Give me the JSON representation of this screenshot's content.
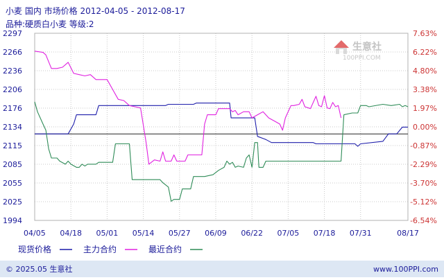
{
  "header": {
    "title": "小麦  国内  市场价格  2012-04-05 - 2012-08-17",
    "subtitle": "品种:硬质白小麦  等级:2"
  },
  "watermark": {
    "brand": "生意社",
    "url": "100PPI.COM"
  },
  "footer": {
    "copyright": "© 2025.05 生意社",
    "website": "www.100PPI.com"
  },
  "colors": {
    "text": "#1a1a99",
    "right_axis_text": "#cc3333",
    "grid": "#c8c8c8",
    "baseline": "#222222",
    "frame": "#b0b0b0",
    "footer_bg": "#dde7f4",
    "spot": "#1c1caa",
    "main_contract": "#e020e0",
    "recent_contract": "#2e8b57"
  },
  "chart_data": {
    "type": "line",
    "title": "小麦  国内  市场价格  2012-04-05 - 2012-08-17",
    "subtitle": "品种:硬质白小麦  等级:2",
    "x_tick_labels": [
      "04/05",
      "04/18",
      "05/01",
      "05/14",
      "05/27",
      "06/09",
      "06/22",
      "07/05",
      "07/18",
      "07/31",
      "08/17"
    ],
    "x_tick_positions": [
      0,
      13,
      26,
      39,
      52,
      65,
      78,
      91,
      104,
      117,
      134
    ],
    "x_range": [
      0,
      134
    ],
    "y_left_ticks": [
      "2297",
      "2266",
      "2236",
      "2206",
      "2176",
      "2134",
      "2115",
      "2085",
      "2055",
      "2025",
      "1994"
    ],
    "y_right_ticks": [
      "7.63%",
      "6.22%",
      "4.80%",
      "3.38%",
      "1.97%",
      "0.00%",
      "-0.87%",
      "-2.29%",
      "-3.70%",
      "-5.12%",
      "-6.54%"
    ],
    "y_range": [
      1994,
      2297
    ],
    "baseline": 2134,
    "grid": true,
    "legend_position": "bottom-left",
    "series": [
      {
        "name": "现货价格",
        "color": "#1c1caa",
        "points": [
          [
            0,
            2134
          ],
          [
            12,
            2134
          ],
          [
            14,
            2150
          ],
          [
            15,
            2165
          ],
          [
            22,
            2165
          ],
          [
            23,
            2180
          ],
          [
            47,
            2180
          ],
          [
            48,
            2182
          ],
          [
            57,
            2182
          ],
          [
            58,
            2184
          ],
          [
            70,
            2184
          ],
          [
            70.5,
            2160
          ],
          [
            79,
            2160
          ],
          [
            80,
            2130
          ],
          [
            83,
            2125
          ],
          [
            85,
            2120
          ],
          [
            100,
            2120
          ],
          [
            101,
            2118
          ],
          [
            115,
            2118
          ],
          [
            116,
            2114
          ],
          [
            117,
            2118
          ],
          [
            125,
            2122
          ],
          [
            127,
            2134
          ],
          [
            130,
            2134
          ],
          [
            132,
            2145
          ],
          [
            134,
            2145
          ]
        ]
      },
      {
        "name": "主力合约",
        "color": "#e020e0",
        "points": [
          [
            0,
            2268
          ],
          [
            3,
            2266
          ],
          [
            4,
            2262
          ],
          [
            6,
            2240
          ],
          [
            8,
            2240
          ],
          [
            10,
            2242
          ],
          [
            12,
            2250
          ],
          [
            14,
            2232
          ],
          [
            16,
            2230
          ],
          [
            18,
            2228
          ],
          [
            20,
            2230
          ],
          [
            22,
            2222
          ],
          [
            26,
            2222
          ],
          [
            28,
            2206
          ],
          [
            30,
            2190
          ],
          [
            32,
            2188
          ],
          [
            34,
            2180
          ],
          [
            36,
            2178
          ],
          [
            38,
            2176
          ],
          [
            40,
            2120
          ],
          [
            41,
            2085
          ],
          [
            43,
            2092
          ],
          [
            45,
            2090
          ],
          [
            46,
            2105
          ],
          [
            47,
            2090
          ],
          [
            49,
            2090
          ],
          [
            50,
            2100
          ],
          [
            51,
            2090
          ],
          [
            54,
            2090
          ],
          [
            55,
            2100
          ],
          [
            58,
            2100
          ],
          [
            60,
            2100
          ],
          [
            61,
            2150
          ],
          [
            62,
            2165
          ],
          [
            65,
            2165
          ],
          [
            66,
            2175
          ],
          [
            68,
            2175
          ],
          [
            70,
            2175
          ],
          [
            71,
            2170
          ],
          [
            72,
            2172
          ],
          [
            73,
            2165
          ],
          [
            75,
            2170
          ],
          [
            77,
            2170
          ],
          [
            78,
            2160
          ],
          [
            80,
            2165
          ],
          [
            82,
            2170
          ],
          [
            84,
            2160
          ],
          [
            86,
            2155
          ],
          [
            88,
            2150
          ],
          [
            89,
            2140
          ],
          [
            90,
            2160
          ],
          [
            92,
            2180
          ],
          [
            93,
            2180
          ],
          [
            95,
            2182
          ],
          [
            96,
            2190
          ],
          [
            97,
            2178
          ],
          [
            99,
            2175
          ],
          [
            101,
            2195
          ],
          [
            102,
            2180
          ],
          [
            103,
            2178
          ],
          [
            104,
            2196
          ],
          [
            105,
            2176
          ],
          [
            106,
            2175
          ],
          [
            107,
            2185
          ],
          [
            108,
            2178
          ],
          [
            109,
            2180
          ],
          [
            110,
            2160
          ]
        ]
      },
      {
        "name": "最近合约",
        "color": "#2e8b57",
        "points": [
          [
            0,
            2186
          ],
          [
            1,
            2170
          ],
          [
            3,
            2150
          ],
          [
            4,
            2140
          ],
          [
            5,
            2110
          ],
          [
            6,
            2095
          ],
          [
            8,
            2095
          ],
          [
            9,
            2090
          ],
          [
            11,
            2085
          ],
          [
            12,
            2090
          ],
          [
            13,
            2085
          ],
          [
            15,
            2080
          ],
          [
            16,
            2080
          ],
          [
            17,
            2085
          ],
          [
            18,
            2082
          ],
          [
            19,
            2085
          ],
          [
            22,
            2085
          ],
          [
            23,
            2088
          ],
          [
            28,
            2088
          ],
          [
            29,
            2118
          ],
          [
            34,
            2118
          ],
          [
            35,
            2060
          ],
          [
            41,
            2060
          ],
          [
            45,
            2060
          ],
          [
            46,
            2055
          ],
          [
            48,
            2048
          ],
          [
            49,
            2025
          ],
          [
            50,
            2028
          ],
          [
            52,
            2028
          ],
          [
            53,
            2045
          ],
          [
            56,
            2045
          ],
          [
            57,
            2065
          ],
          [
            61,
            2065
          ],
          [
            64,
            2068
          ],
          [
            66,
            2075
          ],
          [
            68,
            2080
          ],
          [
            69,
            2090
          ],
          [
            70,
            2085
          ],
          [
            71,
            2088
          ],
          [
            72,
            2080
          ],
          [
            73,
            2082
          ],
          [
            75,
            2080
          ],
          [
            76,
            2095
          ],
          [
            77,
            2100
          ],
          [
            78,
            2080
          ],
          [
            79,
            2120
          ],
          [
            80,
            2120
          ],
          [
            80.5,
            2080
          ],
          [
            82,
            2080
          ],
          [
            83,
            2090
          ],
          [
            110,
            2090
          ],
          [
            111,
            2165
          ],
          [
            114,
            2168
          ],
          [
            116,
            2168
          ],
          [
            117,
            2180
          ],
          [
            119,
            2180
          ],
          [
            120,
            2178
          ],
          [
            125,
            2182
          ],
          [
            128,
            2180
          ],
          [
            131,
            2182
          ],
          [
            132,
            2178
          ],
          [
            133,
            2180
          ],
          [
            134,
            2178
          ]
        ]
      }
    ]
  }
}
